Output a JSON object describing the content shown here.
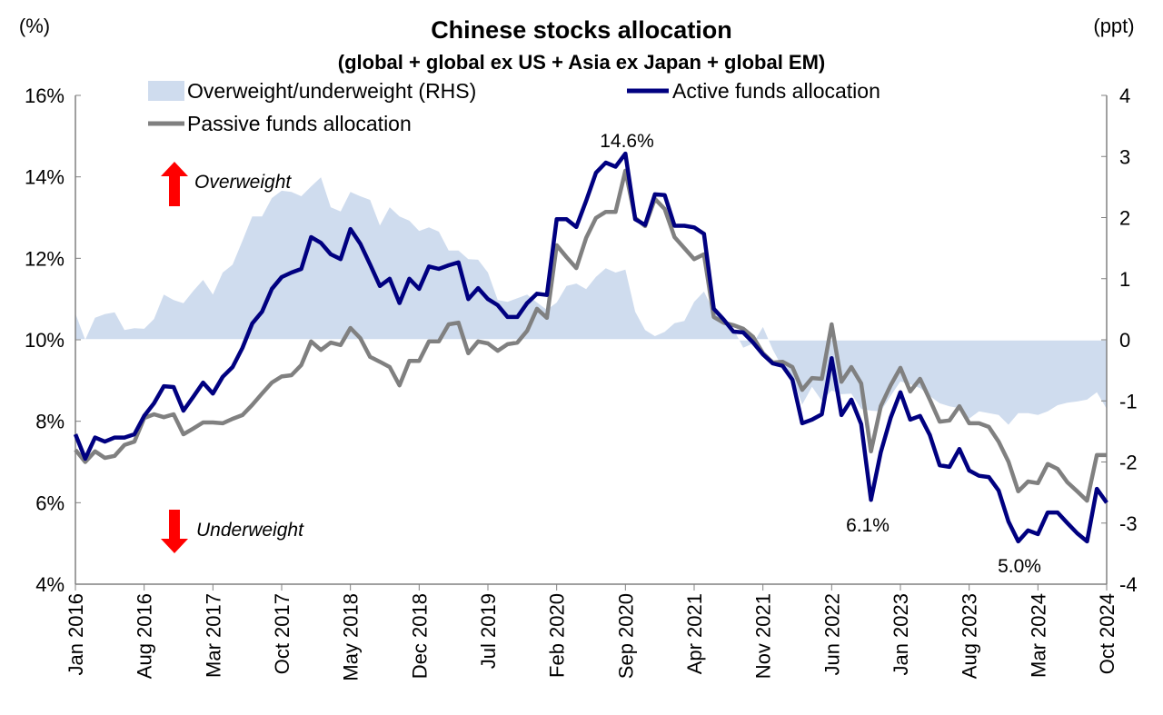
{
  "chart_data": {
    "type": "line",
    "title": "Chinese stocks allocation",
    "subtitle": "(global + global ex US + Asia ex Japan + global EM)",
    "ylabel_left": "(%)",
    "ylabel_right": "(ppt)",
    "ylim_left": [
      4,
      16
    ],
    "ylim_right": [
      -4,
      4
    ],
    "yticks_left": [
      "4%",
      "6%",
      "8%",
      "10%",
      "12%",
      "14%",
      "16%"
    ],
    "yticks_right": [
      "-4",
      "-3",
      "-2",
      "-1",
      "0",
      "1",
      "2",
      "3",
      "4"
    ],
    "x_start": "Jan 2016",
    "x_end": "Oct 2024",
    "xticks": [
      "Jan 2016",
      "Aug 2016",
      "Mar 2017",
      "Oct 2017",
      "May 2018",
      "Dec 2018",
      "Jul 2019",
      "Feb 2020",
      "Sep 2020",
      "Apr 2021",
      "Nov 2021",
      "Jun 2022",
      "Jan 2023",
      "Aug 2023",
      "Mar 2024",
      "Oct 2024"
    ],
    "legend_placement": "top-left",
    "colors": {
      "active": "#000080",
      "passive": "#808080",
      "area": "#cfdcee",
      "negative_tick": "#ff0000",
      "arrow": "#ff0000"
    },
    "series": [
      {
        "name": "Overweight/underweight (RHS)",
        "type": "area",
        "axis": "right",
        "values": [
          0.43,
          0.0,
          0.36,
          0.42,
          0.45,
          0.16,
          0.19,
          0.18,
          0.34,
          0.74,
          0.65,
          0.6,
          0.8,
          0.98,
          0.74,
          1.1,
          1.23,
          1.62,
          2.02,
          2.02,
          2.32,
          2.44,
          2.42,
          2.35,
          2.51,
          2.66,
          2.17,
          2.1,
          2.42,
          2.35,
          2.29,
          1.87,
          2.17,
          2.02,
          1.95,
          1.78,
          1.84,
          1.77,
          1.46,
          1.46,
          1.32,
          1.31,
          1.1,
          0.65,
          0.62,
          0.68,
          0.74,
          0.61,
          0.49,
          0.61,
          0.88,
          0.92,
          0.83,
          1.03,
          1.17,
          1.1,
          1.15,
          0.46,
          0.16,
          0.06,
          0.13,
          0.27,
          0.31,
          0.62,
          0.79,
          0.46,
          0.31,
          0.18,
          -0.13,
          -0.06,
          0.21,
          -0.16,
          -0.46,
          -0.6,
          -1.06,
          -0.77,
          -1.0,
          -0.83,
          -0.89,
          -0.88,
          -1.13,
          -1.16,
          -1.17,
          -0.92,
          -0.68,
          -0.73,
          -0.79,
          -0.92,
          -1.04,
          -1.09,
          -1.12,
          -1.29,
          -1.17,
          -1.2,
          -1.23,
          -1.39,
          -1.2,
          -1.2,
          -1.23,
          -1.17,
          -1.07,
          -1.03,
          -1.01,
          -0.98,
          -0.86,
          -1.13
        ]
      },
      {
        "name": "Active funds allocation",
        "type": "line",
        "axis": "left",
        "values": [
          7.68,
          7.08,
          7.6,
          7.5,
          7.6,
          7.6,
          7.68,
          8.13,
          8.44,
          8.86,
          8.84,
          8.26,
          8.6,
          8.95,
          8.68,
          9.09,
          9.33,
          9.8,
          10.4,
          10.69,
          11.25,
          11.54,
          11.65,
          11.74,
          12.52,
          12.38,
          12.1,
          11.98,
          12.72,
          12.36,
          11.85,
          11.32,
          11.5,
          10.9,
          11.5,
          11.25,
          11.8,
          11.74,
          11.83,
          11.9,
          11.0,
          11.27,
          11.0,
          10.85,
          10.56,
          10.56,
          10.9,
          11.13,
          11.1,
          12.96,
          12.96,
          12.77,
          13.41,
          14.1,
          14.35,
          14.25,
          14.57,
          12.96,
          12.82,
          13.57,
          13.55,
          12.8,
          12.8,
          12.76,
          12.6,
          10.76,
          10.5,
          10.2,
          10.18,
          9.93,
          9.64,
          9.42,
          9.36,
          9.02,
          7.95,
          8.04,
          8.17,
          9.55,
          8.15,
          8.53,
          7.93,
          6.07,
          7.24,
          8.08,
          8.71,
          8.04,
          8.13,
          7.66,
          6.92,
          6.88,
          7.32,
          6.79,
          6.66,
          6.63,
          6.3,
          5.54,
          5.05,
          5.32,
          5.23,
          5.76,
          5.76,
          5.5,
          5.25,
          5.05,
          6.34,
          6.0
        ]
      },
      {
        "name": "Passive funds allocation",
        "type": "line",
        "axis": "left",
        "values": [
          7.3,
          7.0,
          7.26,
          7.1,
          7.15,
          7.42,
          7.5,
          8.08,
          8.17,
          8.1,
          8.17,
          7.68,
          7.82,
          7.97,
          7.97,
          7.95,
          8.06,
          8.15,
          8.4,
          8.68,
          8.95,
          9.1,
          9.13,
          9.38,
          9.96,
          9.75,
          9.93,
          9.87,
          10.29,
          10.04,
          9.58,
          9.46,
          9.33,
          8.88,
          9.48,
          9.48,
          9.96,
          9.96,
          10.38,
          10.42,
          9.67,
          9.96,
          9.91,
          9.73,
          9.89,
          9.93,
          10.22,
          10.76,
          10.54,
          12.32,
          12.03,
          11.76,
          12.5,
          12.99,
          13.14,
          13.14,
          14.15,
          12.99,
          12.79,
          13.46,
          13.21,
          12.52,
          12.25,
          11.98,
          12.1,
          10.56,
          10.42,
          10.36,
          10.27,
          10.07,
          9.67,
          9.44,
          9.46,
          9.33,
          8.77,
          9.06,
          9.04,
          10.38,
          8.97,
          9.33,
          8.93,
          7.26,
          8.37,
          8.88,
          9.31,
          8.73,
          9.04,
          8.53,
          7.99,
          8.02,
          8.37,
          7.95,
          7.95,
          7.86,
          7.5,
          7.01,
          6.28,
          6.52,
          6.48,
          6.95,
          6.83,
          6.5,
          6.28,
          6.05,
          7.17,
          7.17
        ]
      }
    ],
    "annotations": [
      {
        "text": "14.6%",
        "month_index": 56,
        "value": 14.6
      },
      {
        "text": "6.1%",
        "month_index": 81,
        "value": 6.1
      },
      {
        "text": "5.0%",
        "month_index": 96,
        "value": 5.0
      },
      {
        "text": "Overweight",
        "direction": "up"
      },
      {
        "text": "Underweight",
        "direction": "down"
      }
    ]
  }
}
